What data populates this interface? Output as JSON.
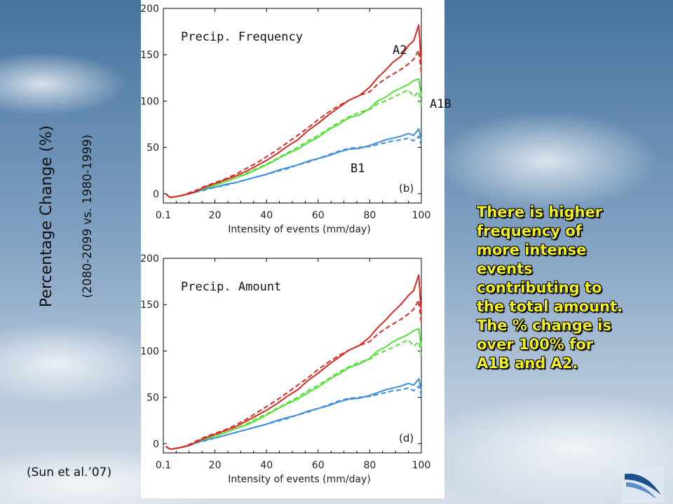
{
  "ylabel": {
    "main": "Percentage Change (%)",
    "sub": "(2080-2099 vs. 1980-1999)"
  },
  "annotation": {
    "lines": [
      "There is higher",
      "frequency of",
      "more intense",
      "events",
      "contributing to",
      "the total amount.",
      "The % change is",
      "over 100% for",
      "A1B and A2."
    ]
  },
  "citation": "(Sun et al.’07)",
  "colors": {
    "A2": "#d92a22",
    "A1B": "#55e03a",
    "B1": "#3f8fdc",
    "sky_top": "#46739f",
    "sky_bottom": "#c5d3e2"
  },
  "logo_icon": "swoosh-logo-icon",
  "chart_data": [
    {
      "type": "line",
      "title": "Precip. Frequency",
      "panel_label": "(b)",
      "xlabel": "Intensity of events (mm/day)",
      "ylabel": "Percentage Change (%)",
      "x_ticks": [
        "0.1",
        "20",
        "40",
        "60",
        "80",
        "100"
      ],
      "y_ticks": [
        "0",
        "50",
        "100",
        "150",
        "200"
      ],
      "xlim": [
        0,
        100
      ],
      "ylim": [
        -10,
        200
      ],
      "grid": false,
      "series_tags": [
        "A2",
        "A1B",
        "B1"
      ],
      "x": [
        1,
        2,
        3,
        5,
        7,
        10,
        13,
        16,
        20,
        24,
        28,
        32,
        36,
        40,
        44,
        48,
        52,
        56,
        60,
        64,
        68,
        72,
        76,
        80,
        83,
        86,
        89,
        92,
        95,
        97,
        99,
        100
      ],
      "series": [
        {
          "key": "A2",
          "style": "solid",
          "values": [
            0,
            -3,
            -4,
            -3,
            -2,
            0,
            3,
            7,
            11,
            15,
            19,
            24,
            30,
            36,
            43,
            51,
            58,
            68,
            76,
            85,
            93,
            101,
            106,
            115,
            125,
            133,
            142,
            148,
            160,
            165,
            182,
            140
          ]
        },
        {
          "key": "A2",
          "style": "dashed",
          "values": [
            0,
            -3,
            -4,
            -3,
            -2,
            1,
            4,
            8,
            12,
            16,
            21,
            27,
            33,
            40,
            47,
            55,
            63,
            71,
            80,
            88,
            95,
            101,
            106,
            110,
            118,
            124,
            129,
            134,
            140,
            145,
            155,
            130
          ]
        },
        {
          "key": "A1B",
          "style": "solid",
          "values": [
            0,
            -3,
            -4,
            -3,
            -2,
            0,
            3,
            6,
            9,
            13,
            17,
            21,
            26,
            31,
            37,
            43,
            48,
            55,
            61,
            69,
            75,
            82,
            85,
            92,
            100,
            104,
            110,
            114,
            118,
            122,
            124,
            105
          ]
        },
        {
          "key": "A1B",
          "style": "dashed",
          "values": [
            0,
            -3,
            -4,
            -3,
            -2,
            0,
            3,
            6,
            10,
            13,
            17,
            22,
            27,
            32,
            38,
            44,
            50,
            57,
            63,
            70,
            77,
            83,
            88,
            91,
            97,
            100,
            104,
            108,
            112,
            105,
            110,
            95
          ]
        },
        {
          "key": "B1",
          "style": "solid",
          "values": [
            0,
            -3,
            -4,
            -3,
            -2,
            0,
            2,
            5,
            7,
            10,
            12,
            15,
            18,
            21,
            25,
            28,
            31,
            35,
            38,
            41,
            45,
            48,
            49,
            52,
            55,
            58,
            60,
            62,
            65,
            63,
            70,
            58
          ]
        },
        {
          "key": "B1",
          "style": "dashed",
          "values": [
            0,
            -3,
            -4,
            -3,
            -2,
            0,
            2,
            4,
            7,
            9,
            12,
            15,
            18,
            21,
            24,
            27,
            31,
            34,
            38,
            42,
            46,
            49,
            50,
            51,
            53,
            55,
            57,
            58,
            60,
            57,
            62,
            52
          ]
        }
      ]
    },
    {
      "type": "line",
      "title": "Precip. Amount",
      "panel_label": "(d)",
      "xlabel": "Intensity of events (mm/day)",
      "ylabel": "Percentage Change (%)",
      "x_ticks": [
        "0.1",
        "20",
        "40",
        "60",
        "80",
        "100"
      ],
      "y_ticks": [
        "0",
        "50",
        "100",
        "150",
        "200"
      ],
      "xlim": [
        0,
        100
      ],
      "ylim": [
        -10,
        200
      ],
      "grid": false,
      "x": [
        1,
        2,
        3,
        5,
        7,
        10,
        13,
        16,
        20,
        24,
        28,
        32,
        36,
        40,
        44,
        48,
        52,
        56,
        60,
        64,
        68,
        72,
        76,
        80,
        83,
        86,
        89,
        92,
        95,
        97,
        99,
        100
      ],
      "series": [
        {
          "key": "A2",
          "style": "solid",
          "values": [
            -3,
            -5,
            -6,
            -5,
            -4,
            -2,
            2,
            6,
            10,
            14,
            18,
            24,
            30,
            36,
            43,
            51,
            58,
            68,
            76,
            85,
            93,
            101,
            106,
            115,
            125,
            133,
            142,
            150,
            160,
            165,
            182,
            140
          ]
        },
        {
          "key": "A2",
          "style": "dashed",
          "values": [
            -3,
            -5,
            -6,
            -5,
            -4,
            -1,
            3,
            7,
            11,
            15,
            20,
            26,
            33,
            40,
            47,
            55,
            63,
            71,
            80,
            88,
            95,
            101,
            106,
            110,
            118,
            124,
            129,
            134,
            140,
            145,
            155,
            130
          ]
        },
        {
          "key": "A1B",
          "style": "solid",
          "values": [
            -3,
            -5,
            -6,
            -5,
            -4,
            -2,
            2,
            5,
            8,
            12,
            16,
            20,
            25,
            31,
            37,
            43,
            48,
            55,
            61,
            69,
            75,
            82,
            86,
            92,
            100,
            104,
            110,
            114,
            118,
            122,
            124,
            105
          ]
        },
        {
          "key": "A1B",
          "style": "dashed",
          "values": [
            -3,
            -5,
            -6,
            -5,
            -4,
            -2,
            2,
            5,
            9,
            12,
            16,
            21,
            27,
            32,
            38,
            44,
            50,
            57,
            63,
            70,
            77,
            83,
            88,
            91,
            97,
            100,
            104,
            108,
            112,
            105,
            110,
            95
          ]
        },
        {
          "key": "B1",
          "style": "solid",
          "values": [
            -3,
            -5,
            -6,
            -5,
            -4,
            -2,
            1,
            4,
            6,
            9,
            12,
            15,
            18,
            21,
            25,
            28,
            31,
            35,
            38,
            41,
            45,
            48,
            49,
            52,
            55,
            58,
            60,
            62,
            65,
            63,
            70,
            58
          ]
        },
        {
          "key": "B1",
          "style": "dashed",
          "values": [
            -3,
            -5,
            -6,
            -5,
            -4,
            -2,
            1,
            3,
            6,
            9,
            12,
            15,
            18,
            21,
            24,
            27,
            31,
            34,
            38,
            42,
            46,
            49,
            50,
            51,
            53,
            55,
            57,
            58,
            60,
            57,
            62,
            52
          ]
        }
      ]
    }
  ]
}
